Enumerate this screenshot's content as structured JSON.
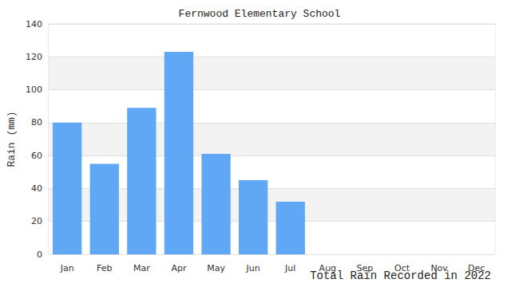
{
  "chart_data": {
    "type": "bar",
    "title": "Fernwood Elementary School",
    "subtitle": "Total Rain Recorded in 2022",
    "y_label": "Rain (mm)",
    "categories": [
      "Jan",
      "Feb",
      "Mar",
      "Apr",
      "May",
      "Jun",
      "Jul",
      "Aug",
      "Sep",
      "Oct",
      "Nov",
      "Dec"
    ],
    "values": [
      80,
      55,
      89,
      123,
      61,
      45,
      32,
      null,
      null,
      null,
      null,
      null
    ],
    "color": "#60a8f5",
    "ylim": [
      0,
      140
    ],
    "yticks": [
      0,
      20,
      40,
      60,
      80,
      100,
      120,
      140
    ],
    "grid": true
  }
}
